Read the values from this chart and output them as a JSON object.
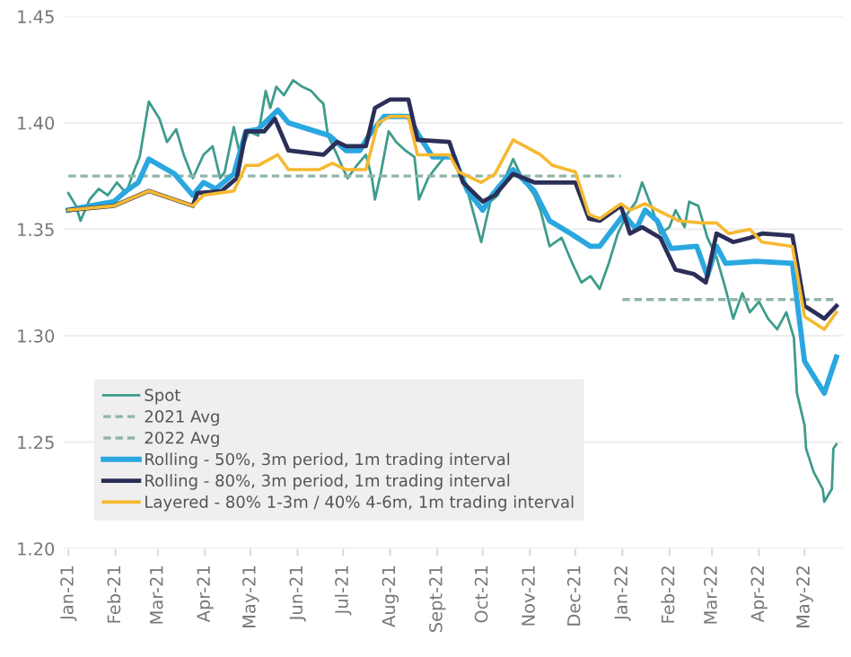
{
  "chart_data": {
    "type": "line",
    "grid": "y",
    "legend": "bottom left",
    "line_style": "solid",
    "marker": "none",
    "xlim": [
      "2020-12-29",
      "2022-05-26"
    ],
    "ylim": [
      1.2,
      1.45
    ],
    "yticks": [
      {
        "value": 1.2,
        "label": "1.20"
      },
      {
        "value": 1.25,
        "label": "1.25"
      },
      {
        "value": 1.3,
        "label": "1.30"
      },
      {
        "value": 1.35,
        "label": "1.35"
      },
      {
        "value": 1.4,
        "label": "1.40"
      },
      {
        "value": 1.45,
        "label": "1.45"
      }
    ],
    "xticks": [
      {
        "value": "2021-01-01",
        "label": "Jan-21"
      },
      {
        "value": "2021-02-01",
        "label": "Feb-21"
      },
      {
        "value": "2021-03-01",
        "label": "Mar-21"
      },
      {
        "value": "2021-04-01",
        "label": "Apr-21"
      },
      {
        "value": "2021-05-01",
        "label": "May-21"
      },
      {
        "value": "2021-06-01",
        "label": "Jun-21"
      },
      {
        "value": "2021-07-01",
        "label": "Jul-21"
      },
      {
        "value": "2021-08-01",
        "label": "Aug-21"
      },
      {
        "value": "2021-09-01",
        "label": "Sept-21"
      },
      {
        "value": "2021-10-01",
        "label": "Oct-21"
      },
      {
        "value": "2021-11-01",
        "label": "Nov-21"
      },
      {
        "value": "2021-12-01",
        "label": "Dec-21"
      },
      {
        "value": "2022-01-01",
        "label": "Jan-22"
      },
      {
        "value": "2022-02-01",
        "label": "Feb-22"
      },
      {
        "value": "2022-03-01",
        "label": "Mar-22"
      },
      {
        "value": "2022-04-01",
        "label": "Apr-22"
      },
      {
        "value": "2022-05-01",
        "label": "May-22"
      }
    ],
    "series": [
      {
        "name": "Spot",
        "color": "#3e9c8c",
        "x": [
          "2021-01-01",
          "2021-01-06",
          "2021-01-09",
          "2021-01-15",
          "2021-01-21",
          "2021-01-27",
          "2021-02-02",
          "2021-02-08",
          "2021-02-13",
          "2021-02-17",
          "2021-02-23",
          "2021-03-02",
          "2021-03-07",
          "2021-03-13",
          "2021-03-18",
          "2021-03-24",
          "2021-03-31",
          "2021-04-06",
          "2021-04-11",
          "2021-04-14",
          "2021-04-20",
          "2021-04-24",
          "2021-04-30",
          "2021-05-06",
          "2021-05-11",
          "2021-05-14",
          "2021-05-18",
          "2021-05-23",
          "2021-05-29",
          "2021-06-04",
          "2021-06-10",
          "2021-06-15",
          "2021-06-18",
          "2021-06-21",
          "2021-06-27",
          "2021-06-30",
          "2021-07-04",
          "2021-07-10",
          "2021-07-16",
          "2021-07-20",
          "2021-07-22",
          "2021-07-26",
          "2021-07-31",
          "2021-08-05",
          "2021-08-11",
          "2021-08-17",
          "2021-08-20",
          "2021-08-26",
          "2021-08-29",
          "2021-09-07",
          "2021-09-13",
          "2021-09-21",
          "2021-09-30",
          "2021-10-06",
          "2021-10-11",
          "2021-10-21",
          "2021-10-27",
          "2021-11-04",
          "2021-11-08",
          "2021-11-14",
          "2021-11-22",
          "2021-11-29",
          "2021-12-05",
          "2021-12-11",
          "2021-12-17",
          "2021-12-23",
          "2021-12-29",
          "2022-01-04",
          "2022-01-10",
          "2022-01-14",
          "2022-01-20",
          "2022-01-26",
          "2022-02-01",
          "2022-02-05",
          "2022-02-11",
          "2022-02-14",
          "2022-02-20",
          "2022-02-26",
          "2022-03-04",
          "2022-03-10",
          "2022-03-15",
          "2022-03-21",
          "2022-03-26",
          "2022-04-01",
          "2022-04-07",
          "2022-04-13",
          "2022-04-19",
          "2022-04-24",
          "2022-04-26",
          "2022-05-01",
          "2022-05-02",
          "2022-05-07",
          "2022-05-13",
          "2022-05-14",
          "2022-05-19",
          "2022-05-20",
          "2022-05-22"
        ],
        "values": [
          1.367,
          1.361,
          1.354,
          1.364,
          1.369,
          1.366,
          1.372,
          1.367,
          1.377,
          1.384,
          1.41,
          1.402,
          1.391,
          1.397,
          1.385,
          1.374,
          1.385,
          1.389,
          1.374,
          1.377,
          1.398,
          1.385,
          1.396,
          1.394,
          1.415,
          1.407,
          1.417,
          1.413,
          1.42,
          1.417,
          1.415,
          1.411,
          1.409,
          1.394,
          1.385,
          1.38,
          1.374,
          1.38,
          1.385,
          1.374,
          1.364,
          1.377,
          1.396,
          1.391,
          1.387,
          1.384,
          1.364,
          1.374,
          1.377,
          1.385,
          1.384,
          1.368,
          1.344,
          1.363,
          1.366,
          1.383,
          1.374,
          1.366,
          1.359,
          1.342,
          1.346,
          1.334,
          1.325,
          1.328,
          1.322,
          1.334,
          1.348,
          1.357,
          1.363,
          1.372,
          1.361,
          1.348,
          1.351,
          1.359,
          1.351,
          1.363,
          1.361,
          1.346,
          1.337,
          1.322,
          1.308,
          1.32,
          1.311,
          1.316,
          1.308,
          1.303,
          1.311,
          1.299,
          1.273,
          1.258,
          1.247,
          1.236,
          1.228,
          1.222,
          1.228,
          1.247,
          1.249
        ]
      },
      {
        "name": "2021 Avg",
        "color": "#8fb5a8",
        "line_style": "dashed",
        "x": [
          "2021-01-01",
          "2021-12-31"
        ],
        "values": [
          1.375,
          1.375
        ]
      },
      {
        "name": "2022 Avg",
        "color": "#8fb5a8",
        "line_style": "dashed",
        "x": [
          "2022-01-01",
          "2022-05-22"
        ],
        "values": [
          1.317,
          1.317
        ]
      },
      {
        "name": "Rolling - 50%, 3m period, 1m trading interval",
        "color": "#2aa7e0",
        "x": [
          "2021-01-01",
          "2021-01-15",
          "2021-01-31",
          "2021-02-08",
          "2021-02-16",
          "2021-02-23",
          "2021-03-12",
          "2021-03-24",
          "2021-03-31",
          "2021-04-08",
          "2021-04-20",
          "2021-04-28",
          "2021-05-06",
          "2021-05-19",
          "2021-05-26",
          "2021-06-22",
          "2021-07-03",
          "2021-07-12",
          "2021-07-18",
          "2021-07-28",
          "2021-08-13",
          "2021-08-20",
          "2021-08-29",
          "2021-09-12",
          "2021-09-21",
          "2021-10-01",
          "2021-10-07",
          "2021-10-21",
          "2021-11-04",
          "2021-11-14",
          "2021-11-28",
          "2021-12-11",
          "2021-12-17",
          "2022-01-02",
          "2022-01-10",
          "2022-01-16",
          "2022-01-24",
          "2022-02-02",
          "2022-02-19",
          "2022-02-26",
          "2022-03-04",
          "2022-03-10",
          "2022-03-30",
          "2022-04-23",
          "2022-05-01",
          "2022-05-14",
          "2022-05-22"
        ],
        "values": [
          1.359,
          1.361,
          1.363,
          1.368,
          1.372,
          1.383,
          1.376,
          1.366,
          1.372,
          1.369,
          1.376,
          1.396,
          1.397,
          1.406,
          1.4,
          1.394,
          1.387,
          1.387,
          1.394,
          1.403,
          1.403,
          1.394,
          1.384,
          1.384,
          1.368,
          1.359,
          1.366,
          1.378,
          1.368,
          1.354,
          1.348,
          1.342,
          1.342,
          1.357,
          1.35,
          1.359,
          1.354,
          1.341,
          1.342,
          1.328,
          1.342,
          1.334,
          1.335,
          1.334,
          1.288,
          1.273,
          1.29
        ]
      },
      {
        "name": "Rolling - 80%, 3m period, 1m trading interval",
        "color": "#2b2f58",
        "x": [
          "2021-01-01",
          "2021-01-31",
          "2021-02-23",
          "2021-03-24",
          "2021-03-27",
          "2021-04-12",
          "2021-04-22",
          "2021-04-28",
          "2021-05-10",
          "2021-05-17",
          "2021-05-26",
          "2021-06-18",
          "2021-06-27",
          "2021-07-03",
          "2021-07-16",
          "2021-07-22",
          "2021-08-01",
          "2021-08-13",
          "2021-08-19",
          "2021-09-09",
          "2021-09-18",
          "2021-10-01",
          "2021-10-09",
          "2021-10-21",
          "2021-11-04",
          "2021-12-01",
          "2021-12-10",
          "2021-12-17",
          "2021-12-31",
          "2022-01-06",
          "2022-01-14",
          "2022-01-26",
          "2022-02-05",
          "2022-02-17",
          "2022-02-25",
          "2022-03-04",
          "2022-03-15",
          "2022-03-26",
          "2022-04-03",
          "2022-04-23",
          "2022-05-01",
          "2022-05-14",
          "2022-05-22"
        ],
        "values": [
          1.359,
          1.361,
          1.368,
          1.361,
          1.367,
          1.368,
          1.374,
          1.396,
          1.396,
          1.402,
          1.387,
          1.385,
          1.391,
          1.389,
          1.389,
          1.407,
          1.411,
          1.411,
          1.392,
          1.391,
          1.372,
          1.363,
          1.366,
          1.376,
          1.372,
          1.372,
          1.355,
          1.354,
          1.361,
          1.348,
          1.351,
          1.346,
          1.331,
          1.329,
          1.325,
          1.348,
          1.344,
          1.346,
          1.348,
          1.347,
          1.314,
          1.308,
          1.314
        ]
      },
      {
        "name": "Layered - 80% 1-3m / 40% 4-6m, 1m trading interval",
        "color": "#f6b931",
        "x": [
          "2021-01-01",
          "2021-01-31",
          "2021-02-23",
          "2021-03-24",
          "2021-03-31",
          "2021-04-20",
          "2021-04-28",
          "2021-05-06",
          "2021-05-19",
          "2021-05-26",
          "2021-06-15",
          "2021-06-24",
          "2021-07-03",
          "2021-07-16",
          "2021-07-24",
          "2021-08-01",
          "2021-08-13",
          "2021-08-19",
          "2021-09-09",
          "2021-09-15",
          "2021-09-30",
          "2021-10-09",
          "2021-10-21",
          "2021-11-08",
          "2021-11-16",
          "2021-12-01",
          "2021-12-10",
          "2021-12-17",
          "2021-12-31",
          "2022-01-06",
          "2022-01-16",
          "2022-01-24",
          "2022-02-07",
          "2022-02-22",
          "2022-03-04",
          "2022-03-12",
          "2022-03-26",
          "2022-04-03",
          "2022-04-23",
          "2022-05-01",
          "2022-05-14",
          "2022-05-22"
        ],
        "values": [
          1.359,
          1.361,
          1.368,
          1.361,
          1.366,
          1.368,
          1.38,
          1.38,
          1.385,
          1.378,
          1.378,
          1.381,
          1.378,
          1.378,
          1.4,
          1.403,
          1.403,
          1.385,
          1.385,
          1.377,
          1.372,
          1.376,
          1.392,
          1.385,
          1.38,
          1.377,
          1.357,
          1.355,
          1.362,
          1.359,
          1.362,
          1.359,
          1.354,
          1.353,
          1.353,
          1.348,
          1.35,
          1.344,
          1.342,
          1.309,
          1.303,
          1.311
        ]
      }
    ]
  }
}
